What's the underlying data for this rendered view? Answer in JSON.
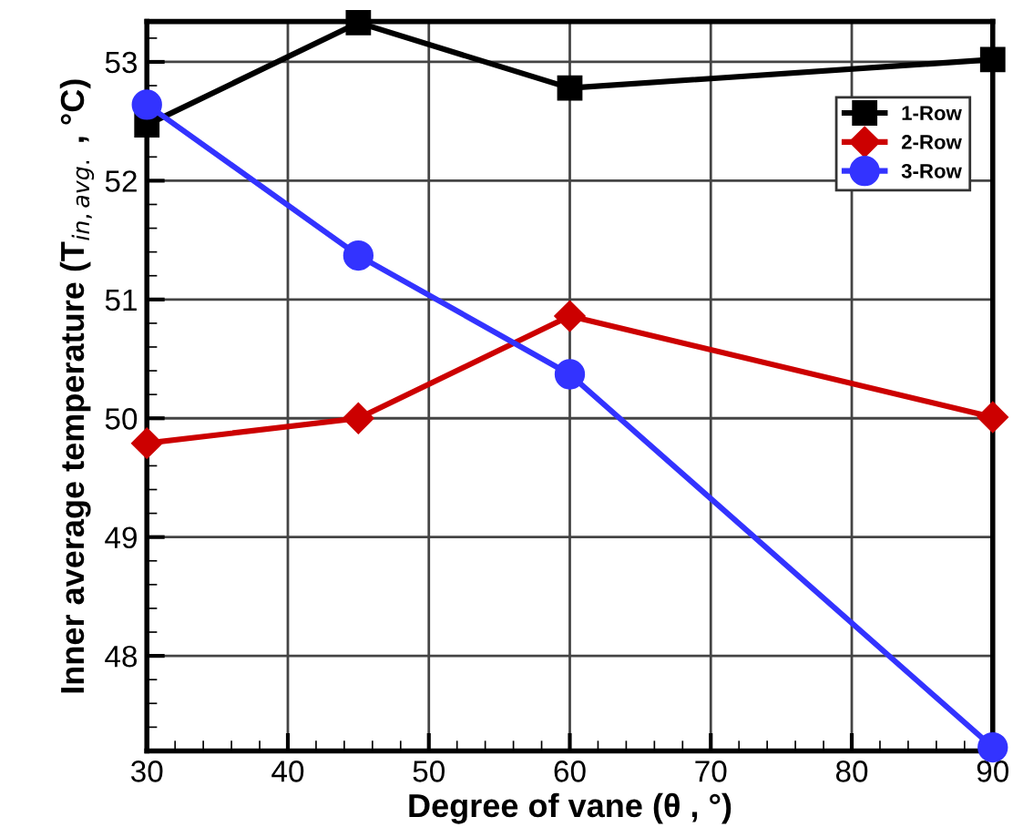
{
  "chart_data": {
    "type": "line",
    "xlabel": "Degree of vane (θ , °)",
    "ylabel": "Inner average temperature (T$_{in,avg.}$ , °C)",
    "x": [
      30,
      45,
      60,
      90
    ],
    "series": [
      {
        "name": "1-Row",
        "color": "#000000",
        "marker": "square",
        "values": [
          52.47,
          53.33,
          52.78,
          53.02
        ]
      },
      {
        "name": "2-Row",
        "color": "#cc0000",
        "marker": "diamond",
        "values": [
          49.79,
          50.0,
          50.86,
          50.01
        ]
      },
      {
        "name": "3-Row",
        "color": "#3333ff",
        "marker": "circle",
        "values": [
          52.64,
          51.37,
          50.37,
          47.23
        ]
      }
    ],
    "xlim": [
      30,
      90
    ],
    "xticks": [
      30,
      40,
      50,
      60,
      70,
      80,
      90
    ],
    "ylim": [
      47.2,
      53.34
    ],
    "yticks": [
      48,
      49,
      50,
      51,
      52,
      53
    ],
    "grid": true,
    "legend": "top right",
    "line_style": "solid"
  }
}
